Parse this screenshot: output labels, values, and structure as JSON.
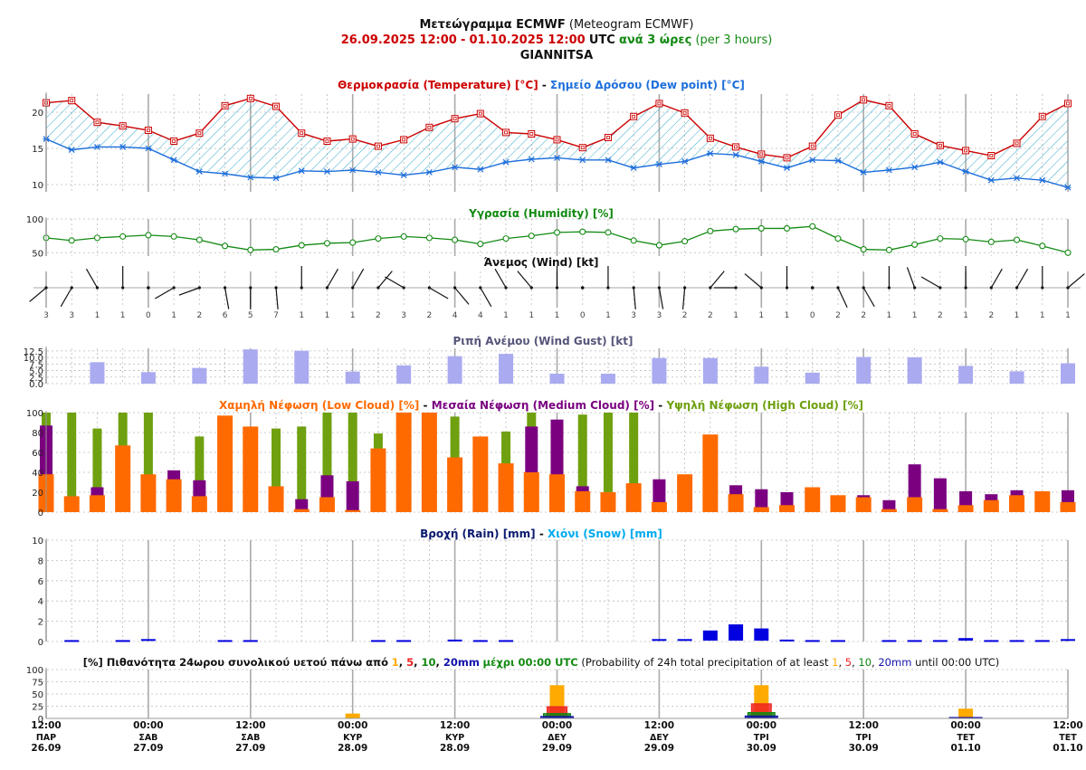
{
  "header": {
    "title_main": "Μετεώγραμμα ECMWF",
    "title_paren": "(Meteogram ECMWF)",
    "period_start": "26.09.2025 12:00",
    "period_sep": "-",
    "period_end": "01.10.2025 12:00",
    "utc": "UTC",
    "step_gr": "ανά 3 ώρες",
    "step_en": "(per 3 hours)",
    "location": "GIANNITSA"
  },
  "colors": {
    "temperature": "#cc0000",
    "dewpoint": "#1e6fdc",
    "hatch": "#33aacc",
    "humidity": "#138a13",
    "gust": "#aaaaf0",
    "low_cloud": "#ff6a00",
    "medium_cloud": "#7a0080",
    "high_cloud": "#6fa00f",
    "rain": "#0000e0",
    "snow": "#00aaee",
    "p1": "#ffaa00",
    "p5": "#ee2222",
    "p10": "#118811",
    "p20": "#1111aa",
    "title_dark": "#0a1a6e",
    "gust_title": "#55557a"
  },
  "chart_data": [
    {
      "type": "line",
      "name": "temperature",
      "title_a": "Θερμοκρασία (Temperature) [°C]",
      "title_sep": "-",
      "title_b": "Σημείο Δρόσου (Dew point) [°C]",
      "ylim": [
        9,
        22.5
      ],
      "yticks": [
        10,
        15,
        20
      ],
      "series": [
        {
          "name": "Θερμοκρασία (Temperature) [°C]",
          "values": [
            21.3,
            21.6,
            18.6,
            18.1,
            17.5,
            16.0,
            17.1,
            20.9,
            21.9,
            20.8,
            17.1,
            16.0,
            16.3,
            15.3,
            16.2,
            17.9,
            19.1,
            19.8,
            17.2,
            17.0,
            16.2,
            15.1,
            16.5,
            19.4,
            21.2,
            19.9,
            16.4,
            15.2,
            14.2,
            13.7,
            15.3,
            19.6,
            21.7,
            20.9,
            17.0,
            15.4,
            14.7,
            14.0,
            15.7,
            19.4,
            21.2
          ]
        },
        {
          "name": "Σημείο Δρόσου (Dew point) [°C]",
          "values": [
            16.3,
            14.8,
            15.2,
            15.2,
            15.0,
            13.4,
            11.8,
            11.5,
            11.0,
            10.9,
            11.9,
            11.8,
            12.0,
            11.7,
            11.3,
            11.7,
            12.4,
            12.1,
            13.1,
            13.5,
            13.7,
            13.4,
            13.4,
            12.3,
            12.8,
            13.2,
            14.3,
            14.1,
            13.2,
            12.3,
            13.4,
            13.3,
            11.7,
            12.0,
            12.4,
            13.1,
            11.8,
            10.6,
            10.9,
            10.6,
            9.6
          ]
        }
      ]
    },
    {
      "type": "line",
      "name": "humidity",
      "title": "Υγρασία (Humidity) [%]",
      "ylim": [
        45,
        100
      ],
      "yticks": [
        50,
        100
      ],
      "values": [
        72,
        68,
        72,
        74,
        76,
        74,
        69,
        60,
        54,
        55,
        61,
        64,
        65,
        71,
        74,
        72,
        69,
        63,
        71,
        75,
        80,
        81,
        80,
        68,
        61,
        67,
        82,
        85,
        86,
        86,
        89,
        71,
        55,
        54,
        62,
        71,
        70,
        66,
        69,
        60,
        50
      ]
    },
    {
      "type": "table",
      "name": "wind",
      "title": "Άνεμος (Wind) [kt]",
      "speeds": [
        3,
        3,
        1,
        1,
        0,
        1,
        2,
        6,
        5,
        7,
        1,
        1,
        1,
        2,
        3,
        2,
        4,
        4,
        1,
        1,
        1,
        0,
        1,
        3,
        3,
        2,
        2,
        1,
        1,
        1,
        0,
        2,
        2,
        1,
        1,
        2,
        1,
        2,
        1,
        1,
        1
      ],
      "dirs_deg": [
        230,
        210,
        330,
        0,
        0,
        240,
        250,
        170,
        180,
        175,
        0,
        30,
        30,
        40,
        300,
        120,
        140,
        150,
        330,
        320,
        0,
        0,
        0,
        175,
        170,
        185,
        40,
        270,
        310,
        0,
        0,
        155,
        150,
        0,
        340,
        300,
        0,
        30,
        30,
        0,
        50
      ]
    },
    {
      "type": "bar",
      "name": "wind_gust",
      "title": "Ριπή Ανέμου (Wind Gust) [kt]",
      "ylim": [
        0,
        13.5
      ],
      "yticks": [
        0,
        2.5,
        5,
        7.5,
        10,
        12.5
      ],
      "ytick_labels": [
        "0.0",
        "2.5",
        "5.0",
        "7.5",
        "10.0",
        "12.5"
      ],
      "values": [
        null,
        null,
        8.2,
        null,
        4.4,
        null,
        6.0,
        null,
        13.1,
        null,
        12.6,
        null,
        4.6,
        null,
        7.0,
        null,
        10.5,
        null,
        11.4,
        null,
        3.8,
        null,
        3.8,
        null,
        9.8,
        null,
        9.8,
        null,
        6.5,
        null,
        4.2,
        null,
        10.2,
        null,
        10.1,
        null,
        6.8,
        null,
        4.7,
        null,
        7.8
      ]
    },
    {
      "type": "bar",
      "name": "cloud",
      "title_low": "Χαμηλή Νέφωση (Low Cloud) [%]",
      "title_med": "Μεσαία Νέφωση (Medium Cloud) [%]",
      "title_high": "Υψηλή Νέφωση (High Cloud) [%]",
      "title_sep": "-",
      "ylim": [
        0,
        100
      ],
      "yticks": [
        0,
        20,
        40,
        60,
        80,
        100
      ],
      "series": [
        {
          "name": "Υψηλή Νέφωση (High Cloud) [%]",
          "values": [
            100,
            100,
            84,
            100,
            100,
            0,
            76,
            0,
            0,
            84,
            86,
            100,
            100,
            79,
            0,
            0,
            96,
            0,
            81,
            100,
            0,
            98,
            100,
            100,
            0,
            0,
            0,
            0,
            0,
            0,
            0,
            0,
            0,
            0,
            0,
            0,
            0,
            0,
            0,
            0,
            0
          ]
        },
        {
          "name": "Μεσαία Νέφωση (Medium Cloud) [%]",
          "values": [
            87,
            0,
            25,
            0,
            0,
            42,
            32,
            0,
            0,
            0,
            13,
            37,
            31,
            0,
            0,
            0,
            0,
            0,
            0,
            86,
            93,
            26,
            0,
            0,
            33,
            0,
            0,
            27,
            23,
            20,
            0,
            0,
            17,
            12,
            48,
            34,
            21,
            18,
            22,
            0,
            22
          ]
        },
        {
          "name": "Χαμηλή Νέφωση (Low Cloud) [%]",
          "values": [
            38,
            16,
            17,
            67,
            38,
            33,
            16,
            97,
            86,
            26,
            3,
            15,
            2,
            64,
            100,
            100,
            55,
            76,
            49,
            40,
            38,
            21,
            20,
            29,
            10,
            38,
            78,
            18,
            5,
            7,
            25,
            17,
            15,
            3,
            15,
            3,
            7,
            12,
            17,
            21,
            10
          ]
        }
      ]
    },
    {
      "type": "bar",
      "name": "precipitation",
      "title_rain": "Βροχή (Rain) [mm]",
      "title_sep": "-",
      "title_snow": "Χιόνι (Snow) [mm]",
      "ylim": [
        0,
        10
      ],
      "yticks": [
        0,
        2,
        4,
        6,
        8,
        10
      ],
      "series": [
        {
          "name": "Βροχή (Rain) [mm]",
          "values": [
            0,
            0.05,
            0,
            0.05,
            0.15,
            0,
            0,
            0.05,
            0.05,
            0,
            0,
            0,
            0,
            0.05,
            0.05,
            0,
            0.1,
            0.05,
            0.05,
            0,
            0,
            0,
            0,
            0,
            0.15,
            0.15,
            1.0,
            1.6,
            1.2,
            0.1,
            0.05,
            0.05,
            0,
            0.05,
            0.05,
            0.05,
            0.25,
            0.05,
            0.05,
            0.05,
            0.15
          ]
        },
        {
          "name": "Χιόνι (Snow) [mm]",
          "values": [
            0,
            0,
            0,
            0,
            0,
            0,
            0,
            0,
            0,
            0,
            0,
            0,
            0,
            0,
            0,
            0,
            0,
            0,
            0,
            0,
            0,
            0,
            0,
            0,
            0,
            0,
            0,
            0,
            0,
            0,
            0,
            0,
            0,
            0,
            0,
            0,
            0,
            0,
            0,
            0,
            0
          ]
        }
      ]
    },
    {
      "type": "bar",
      "name": "precip_probability",
      "title_pre": "[%] Πιθανότητα 24ωρου συνολικού υετού πάνω από",
      "title_post": "μέχρι 00:00 UTC",
      "title_en_pre": "(Probability of 24h total precipitation of at least",
      "title_en_post": "until 00:00 UTC)",
      "thresholds": [
        "1",
        "5",
        "10",
        "20mm"
      ],
      "ylim": [
        0,
        100
      ],
      "yticks": [
        0,
        25,
        50,
        75,
        100
      ],
      "ytick_labels": [
        "0",
        "25",
        "50",
        "75",
        "100"
      ],
      "at_index": [
        4,
        12,
        20,
        28,
        36
      ],
      "series": [
        {
          "name": "1",
          "values": [
            0,
            10,
            68,
            68,
            20
          ]
        },
        {
          "name": "5",
          "values": [
            0,
            0,
            24,
            30,
            0
          ]
        },
        {
          "name": "10",
          "values": [
            0,
            0,
            10,
            12,
            0
          ]
        },
        {
          "name": "20mm",
          "values": [
            0,
            0,
            4,
            5,
            2
          ]
        }
      ]
    }
  ],
  "x_axis": {
    "labels": [
      {
        "time": "12:00",
        "day": "ΠΑΡ",
        "date": "26.09"
      },
      {
        "time": "00:00",
        "day": "ΣΑΒ",
        "date": "27.09"
      },
      {
        "time": "12:00",
        "day": "ΣΑΒ",
        "date": "27.09"
      },
      {
        "time": "00:00",
        "day": "ΚΥΡ",
        "date": "28.09"
      },
      {
        "time": "12:00",
        "day": "ΚΥΡ",
        "date": "28.09"
      },
      {
        "time": "00:00",
        "day": "ΔΕΥ",
        "date": "29.09"
      },
      {
        "time": "12:00",
        "day": "ΔΕΥ",
        "date": "29.09"
      },
      {
        "time": "00:00",
        "day": "ΤΡΙ",
        "date": "30.09"
      },
      {
        "time": "12:00",
        "day": "ΤΡΙ",
        "date": "30.09"
      },
      {
        "time": "00:00",
        "day": "ΤΕΤ",
        "date": "01.10"
      },
      {
        "time": "12:00",
        "day": "ΤΕΤ",
        "date": "01.10"
      }
    ]
  }
}
